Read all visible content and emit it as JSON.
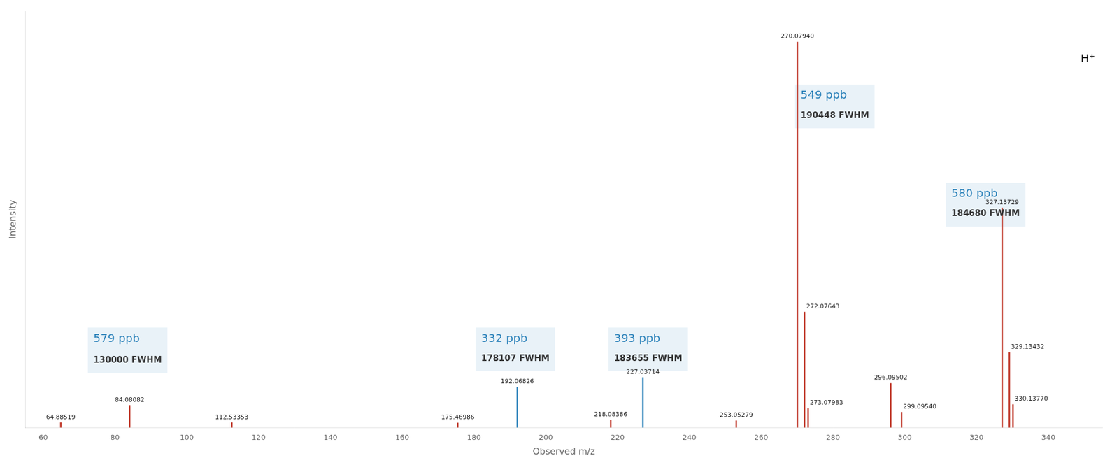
{
  "chart_data": {
    "type": "stem",
    "xlabel": "Observed m/z",
    "ylabel": "Intensity",
    "xlim": [
      55,
      355
    ],
    "ylim": [
      0,
      1.08
    ],
    "xticks": [
      60,
      80,
      100,
      120,
      140,
      160,
      180,
      200,
      220,
      240,
      260,
      280,
      300,
      320,
      340
    ],
    "tick_labels": "x",
    "grid": false,
    "x": [
      64.88519,
      84.08082,
      112.53353,
      175.46986,
      192.06826,
      218.08386,
      227.03714,
      253.05279,
      270.0794,
      272.07643,
      273.07983,
      296.09502,
      299.0954,
      327.13729,
      329.13432,
      330.1377
    ],
    "values": [
      0.013,
      0.058,
      0.013,
      0.012,
      0.105,
      0.02,
      0.13,
      0.018,
      1.0,
      0.3,
      0.05,
      0.115,
      0.04,
      0.57,
      0.195,
      0.06
    ],
    "colors": [
      "#c0392b",
      "#c0392b",
      "#c0392b",
      "#c0392b",
      "#2980b9",
      "#c0392b",
      "#2980b9",
      "#c0392b",
      "#c0392b",
      "#c0392b",
      "#c0392b",
      "#c0392b",
      "#c0392b",
      "#c0392b",
      "#c0392b",
      "#c0392b"
    ],
    "point_labels": [
      "64.88519",
      "84.08082",
      "112.53353",
      "175.46986",
      "192.06826",
      "218.08386",
      "227.03714",
      "253.05279",
      "270.07940",
      "272.07643",
      "273.07983",
      "296.09502",
      "299.09540",
      "327.13729",
      "329.13432",
      "330.13770"
    ],
    "annotations": [
      {
        "text": "579 ppb",
        "x": 74,
        "y": 0.245,
        "color": "#2980b9"
      },
      {
        "text": "130000 FWHM",
        "x": 74,
        "y": 0.185,
        "color": "#333333"
      },
      {
        "text": "332 ppb",
        "x": 182,
        "y": 0.245,
        "color": "#2980b9"
      },
      {
        "text": "178107 FWHM",
        "x": 182,
        "y": 0.19,
        "color": "#333333"
      },
      {
        "text": "393 ppb",
        "x": 219,
        "y": 0.245,
        "color": "#2980b9"
      },
      {
        "text": "183655 FWHM",
        "x": 219,
        "y": 0.19,
        "color": "#333333"
      },
      {
        "text": "549 ppb",
        "x": 271,
        "y": 0.875,
        "color": "#2980b9"
      },
      {
        "text": "190448 FWHM",
        "x": 271,
        "y": 0.82,
        "color": "#333333"
      },
      {
        "text": "580 ppb",
        "x": 313,
        "y": 0.62,
        "color": "#2980b9"
      },
      {
        "text": "184680 FWHM",
        "x": 313,
        "y": 0.565,
        "color": "#333333"
      },
      {
        "text": "H⁺",
        "x": 349,
        "y": 0.97,
        "color": "#000000"
      }
    ]
  }
}
